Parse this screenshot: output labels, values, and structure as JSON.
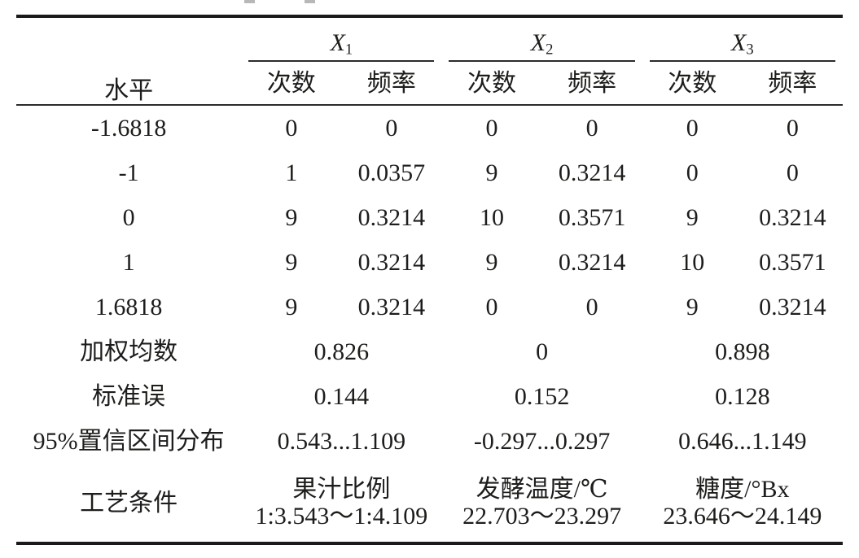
{
  "page": {
    "background": "#ffffff",
    "text_color": "#1d1d1b",
    "thick_rule_color": "#1a1a1a",
    "thin_rule_color": "#2b2b2b"
  },
  "table": {
    "level_header": "水平",
    "groups": [
      {
        "label": "X",
        "sub": "1",
        "count_header": "次数",
        "freq_header": "频率"
      },
      {
        "label": "X",
        "sub": "2",
        "count_header": "次数",
        "freq_header": "频率"
      },
      {
        "label": "X",
        "sub": "3",
        "count_header": "次数",
        "freq_header": "频率"
      }
    ],
    "rows": [
      {
        "level": "-1.6818",
        "cells": [
          "0",
          "0",
          "0",
          "0",
          "0",
          "0"
        ]
      },
      {
        "level": "-1",
        "cells": [
          "1",
          "0.0357",
          "9",
          "0.3214",
          "0",
          "0"
        ]
      },
      {
        "level": "0",
        "cells": [
          "9",
          "0.3214",
          "10",
          "0.3571",
          "9",
          "0.3214"
        ]
      },
      {
        "level": "1",
        "cells": [
          "9",
          "0.3214",
          "9",
          "0.3214",
          "10",
          "0.3571"
        ]
      },
      {
        "level": "1.6818",
        "cells": [
          "9",
          "0.3214",
          "0",
          "0",
          "9",
          "0.3214"
        ]
      }
    ],
    "summary_rows": [
      {
        "label": "加权均数",
        "values": [
          "0.826",
          "0",
          "0.898"
        ]
      },
      {
        "label": "标准误",
        "values": [
          "0.144",
          "0.152",
          "0.128"
        ]
      },
      {
        "label": "95%置信区间分布",
        "values": [
          "0.543...1.109",
          "-0.297...0.297",
          "0.646...1.149"
        ]
      }
    ],
    "condition_row": {
      "label": "工艺条件",
      "values": [
        {
          "line1": "果汁比例",
          "line2": "1:3.543～1:4.109"
        },
        {
          "line1": "发酵温度/℃",
          "line2": "22.703～23.297"
        },
        {
          "line1": "糖度/°Bx",
          "line2": "23.646～24.149"
        }
      ]
    }
  }
}
